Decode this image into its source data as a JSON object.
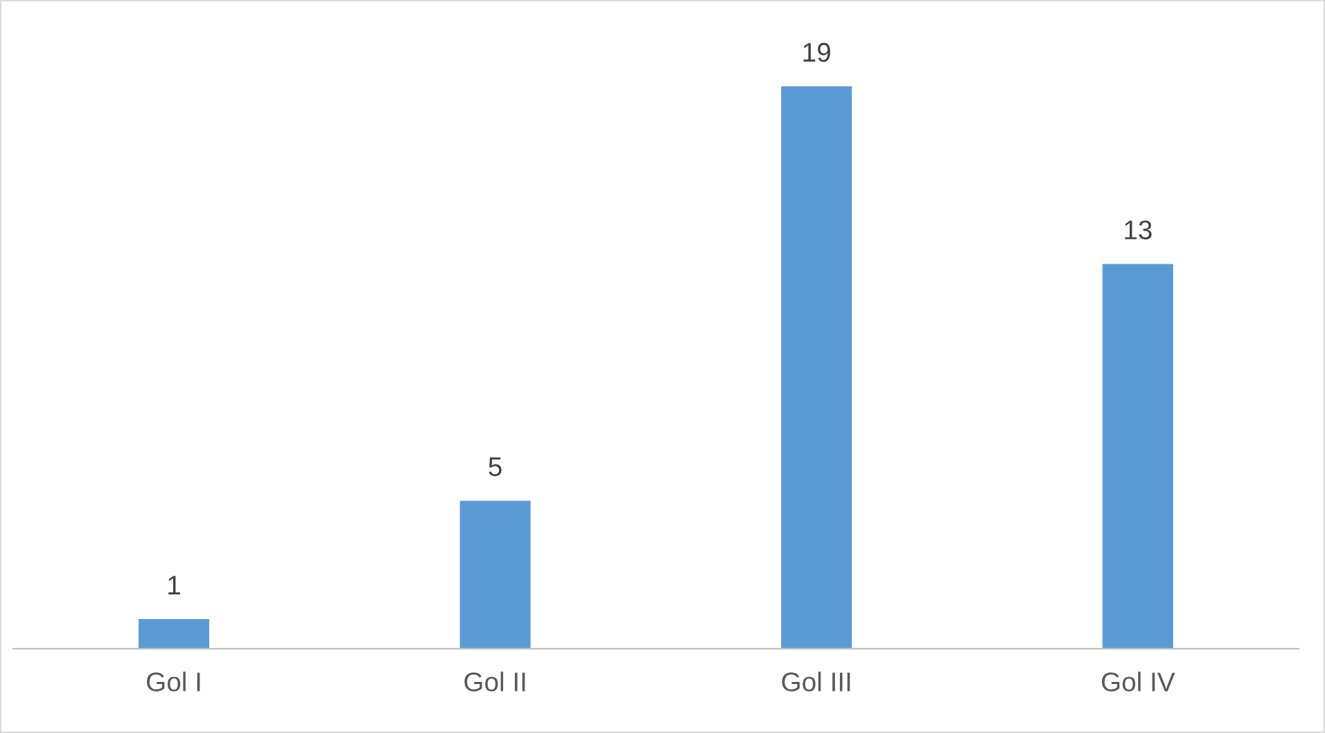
{
  "chart_data": {
    "type": "bar",
    "categories": [
      "Gol I",
      "Gol II",
      "Gol III",
      "Gol IV"
    ],
    "values": [
      1,
      5,
      19,
      13
    ],
    "color": "#5b9bd5",
    "data_labels": true,
    "grid": false
  }
}
